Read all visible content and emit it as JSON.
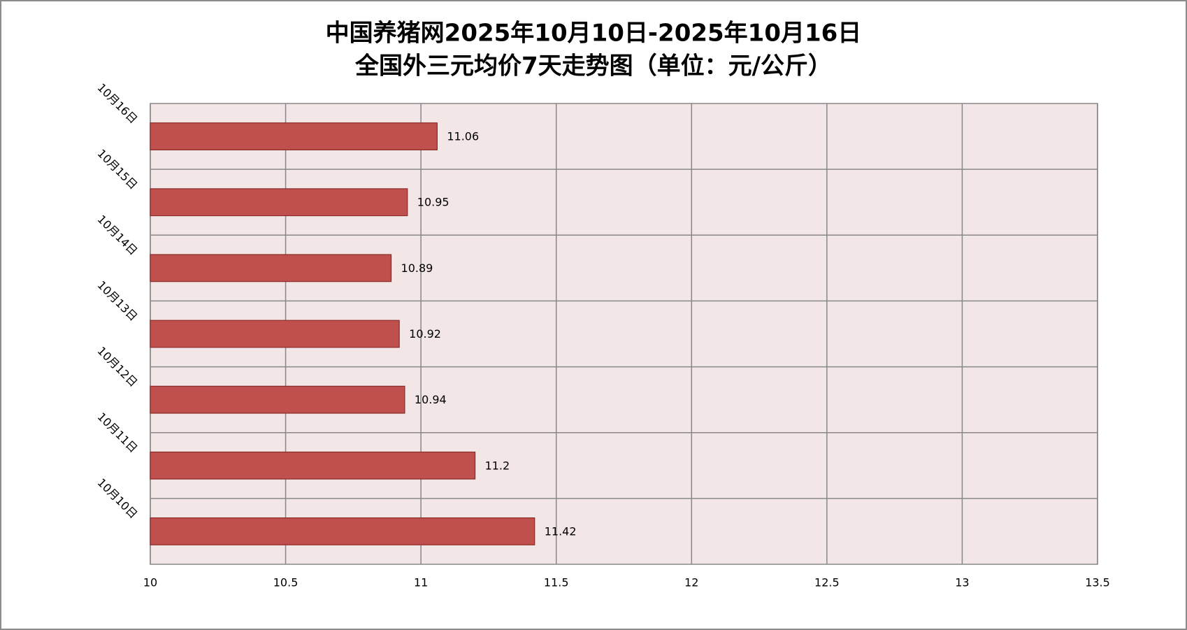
{
  "chart_data": {
    "type": "bar",
    "orientation": "horizontal",
    "title": [
      "中国养猪网2025年10月10日-2025年10月16日",
      "全国外三元均价7天走势图（单位：元/公斤）"
    ],
    "categories": [
      "10月10日",
      "10月11日",
      "10月12日",
      "10月13日",
      "10月14日",
      "10月15日",
      "10月16日"
    ],
    "values": [
      11.42,
      11.2,
      10.94,
      10.92,
      10.89,
      10.95,
      11.06
    ],
    "color": "#c0504d",
    "xlim": [
      10,
      13.5
    ],
    "xticks": [
      10,
      10.5,
      11,
      11.5,
      12,
      12.5,
      13,
      13.5
    ],
    "grid": true
  }
}
